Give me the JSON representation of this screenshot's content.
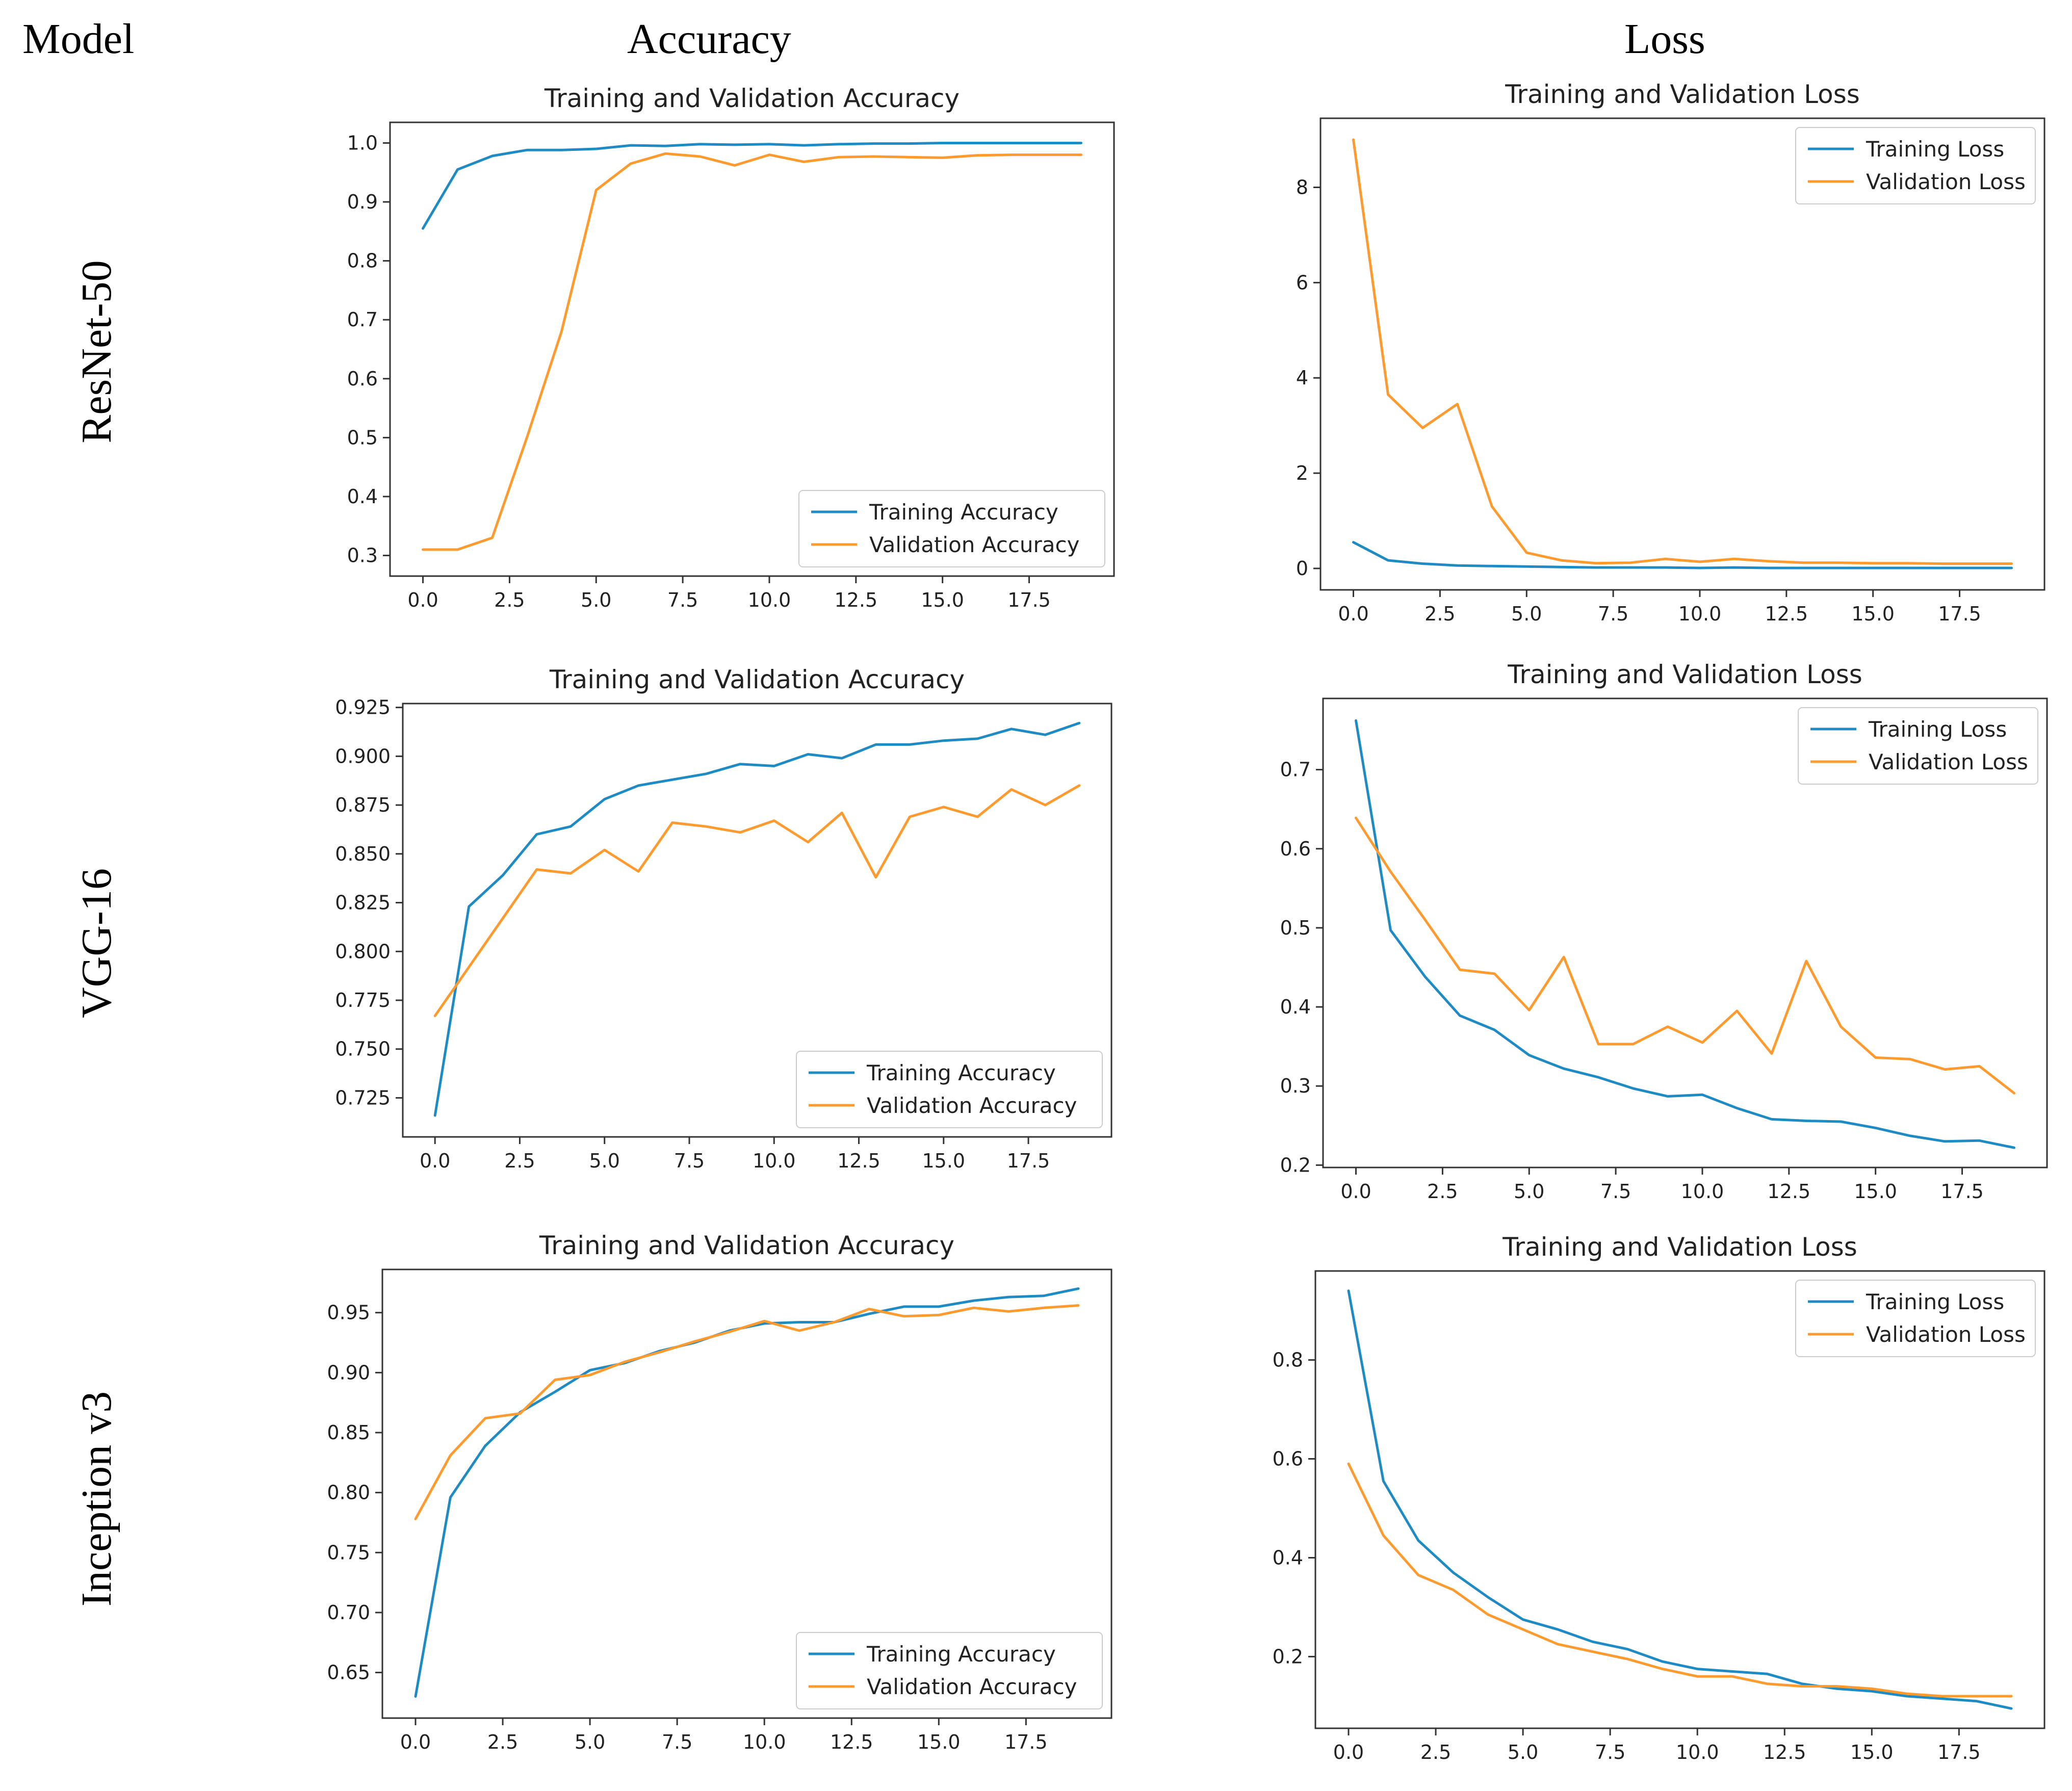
{
  "headers": {
    "model": "Model",
    "accuracy": "Accuracy",
    "loss": "Loss"
  },
  "rows": [
    {
      "label": "ResNet-50"
    },
    {
      "label": "VGG-16"
    },
    {
      "label": "Inception v3"
    }
  ],
  "colors": {
    "training": "#1f8bc4",
    "validation": "#ff9a2e",
    "axis": "#333333"
  },
  "chart_data": [
    {
      "id": "resnet50-accuracy",
      "type": "line",
      "title": "Training and Validation Accuracy",
      "xlabel": "",
      "ylabel": "",
      "x": [
        0,
        1,
        2,
        3,
        4,
        5,
        6,
        7,
        8,
        9,
        10,
        11,
        12,
        13,
        14,
        15,
        16,
        17,
        18,
        19
      ],
      "xlim": [
        -0.95,
        19.95
      ],
      "ylim": [
        0.265,
        1.035
      ],
      "grid": false,
      "xticks": [
        "0.0",
        "2.5",
        "5.0",
        "7.5",
        "10.0",
        "12.5",
        "15.0",
        "17.5"
      ],
      "xtick_values": [
        0,
        2.5,
        5,
        7.5,
        10,
        12.5,
        15,
        17.5
      ],
      "yticks": [
        "0.3",
        "0.4",
        "0.5",
        "0.6",
        "0.7",
        "0.8",
        "0.9",
        "1.0"
      ],
      "ytick_values": [
        0.3,
        0.4,
        0.5,
        0.6,
        0.7,
        0.8,
        0.9,
        1.0
      ],
      "legend_position": "lower-right",
      "series": [
        {
          "name": "Training Accuracy",
          "values": [
            0.855,
            0.955,
            0.978,
            0.988,
            0.988,
            0.99,
            0.996,
            0.995,
            0.998,
            0.997,
            0.998,
            0.996,
            0.998,
            0.999,
            0.999,
            1.0,
            1.0,
            1.0,
            1.0,
            1.0
          ]
        },
        {
          "name": "Validation Accuracy",
          "values": [
            0.31,
            0.31,
            0.33,
            0.5,
            0.68,
            0.92,
            0.965,
            0.982,
            0.977,
            0.962,
            0.98,
            0.968,
            0.976,
            0.977,
            0.976,
            0.975,
            0.979,
            0.98,
            0.98,
            0.98
          ]
        }
      ]
    },
    {
      "id": "resnet50-loss",
      "type": "line",
      "title": "Training and Validation Loss",
      "xlabel": "",
      "ylabel": "",
      "x": [
        0,
        1,
        2,
        3,
        4,
        5,
        6,
        7,
        8,
        9,
        10,
        11,
        12,
        13,
        14,
        15,
        16,
        17,
        18,
        19
      ],
      "xlim": [
        -0.95,
        19.95
      ],
      "ylim": [
        -0.45,
        9.45
      ],
      "grid": false,
      "xticks": [
        "0.0",
        "2.5",
        "5.0",
        "7.5",
        "10.0",
        "12.5",
        "15.0",
        "17.5"
      ],
      "xtick_values": [
        0,
        2.5,
        5,
        7.5,
        10,
        12.5,
        15,
        17.5
      ],
      "yticks": [
        "0",
        "2",
        "4",
        "6",
        "8"
      ],
      "ytick_values": [
        0,
        2,
        4,
        6,
        8
      ],
      "legend_position": "top-right",
      "series": [
        {
          "name": "Training Loss",
          "values": [
            0.55,
            0.17,
            0.1,
            0.06,
            0.05,
            0.04,
            0.03,
            0.02,
            0.02,
            0.02,
            0.01,
            0.02,
            0.01,
            0.01,
            0.01,
            0.01,
            0.01,
            0.01,
            0.01,
            0.01
          ]
        },
        {
          "name": "Validation Loss",
          "values": [
            9.0,
            3.65,
            2.95,
            3.45,
            1.3,
            0.33,
            0.17,
            0.11,
            0.12,
            0.2,
            0.14,
            0.2,
            0.15,
            0.12,
            0.12,
            0.11,
            0.11,
            0.1,
            0.1,
            0.1
          ]
        }
      ]
    },
    {
      "id": "vgg16-accuracy",
      "type": "line",
      "title": "Training and Validation Accuracy",
      "xlabel": "",
      "ylabel": "",
      "x": [
        0,
        1,
        2,
        3,
        4,
        5,
        6,
        7,
        8,
        9,
        10,
        11,
        12,
        13,
        14,
        15,
        16,
        17,
        18,
        19
      ],
      "xlim": [
        -0.95,
        19.95
      ],
      "ylim": [
        0.705,
        0.927
      ],
      "grid": false,
      "xticks": [
        "0.0",
        "2.5",
        "5.0",
        "7.5",
        "10.0",
        "12.5",
        "15.0",
        "17.5"
      ],
      "xtick_values": [
        0,
        2.5,
        5,
        7.5,
        10,
        12.5,
        15,
        17.5
      ],
      "yticks": [
        "0.725",
        "0.750",
        "0.775",
        "0.800",
        "0.825",
        "0.850",
        "0.875",
        "0.900",
        "0.925"
      ],
      "ytick_values": [
        0.725,
        0.75,
        0.775,
        0.8,
        0.825,
        0.85,
        0.875,
        0.9,
        0.925
      ],
      "legend_position": "lower-right",
      "series": [
        {
          "name": "Training Accuracy",
          "values": [
            0.716,
            0.823,
            0.839,
            0.86,
            0.864,
            0.878,
            0.885,
            0.888,
            0.891,
            0.896,
            0.895,
            0.901,
            0.899,
            0.906,
            0.906,
            0.908,
            0.909,
            0.914,
            0.911,
            0.917
          ]
        },
        {
          "name": "Validation Accuracy",
          "values": [
            0.767,
            0.792,
            0.817,
            0.842,
            0.84,
            0.852,
            0.841,
            0.866,
            0.864,
            0.861,
            0.867,
            0.856,
            0.871,
            0.838,
            0.869,
            0.874,
            0.869,
            0.883,
            0.875,
            0.885
          ]
        }
      ]
    },
    {
      "id": "vgg16-loss",
      "type": "line",
      "title": "Training and Validation Loss",
      "xlabel": "",
      "ylabel": "",
      "x": [
        0,
        1,
        2,
        3,
        4,
        5,
        6,
        7,
        8,
        9,
        10,
        11,
        12,
        13,
        14,
        15,
        16,
        17,
        18,
        19
      ],
      "xlim": [
        -0.95,
        19.95
      ],
      "ylim": [
        0.197,
        0.79
      ],
      "grid": false,
      "xticks": [
        "0.0",
        "2.5",
        "5.0",
        "7.5",
        "10.0",
        "12.5",
        "15.0",
        "17.5"
      ],
      "xtick_values": [
        0,
        2.5,
        5,
        7.5,
        10,
        12.5,
        15,
        17.5
      ],
      "yticks": [
        "0.2",
        "0.3",
        "0.4",
        "0.5",
        "0.6",
        "0.7"
      ],
      "ytick_values": [
        0.2,
        0.3,
        0.4,
        0.5,
        0.6,
        0.7
      ],
      "legend_position": "top-right",
      "series": [
        {
          "name": "Training Loss",
          "values": [
            0.762,
            0.497,
            0.438,
            0.389,
            0.371,
            0.339,
            0.322,
            0.311,
            0.297,
            0.287,
            0.289,
            0.272,
            0.258,
            0.256,
            0.255,
            0.247,
            0.237,
            0.23,
            0.231,
            0.222
          ]
        },
        {
          "name": "Validation Loss",
          "values": [
            0.639,
            0.571,
            0.51,
            0.447,
            0.442,
            0.396,
            0.463,
            0.353,
            0.353,
            0.375,
            0.355,
            0.395,
            0.341,
            0.458,
            0.375,
            0.336,
            0.334,
            0.321,
            0.325,
            0.291
          ]
        }
      ]
    },
    {
      "id": "inceptionv3-accuracy",
      "type": "line",
      "title": "Training and Validation Accuracy",
      "xlabel": "",
      "ylabel": "",
      "x": [
        0,
        1,
        2,
        3,
        4,
        5,
        6,
        7,
        8,
        9,
        10,
        11,
        12,
        13,
        14,
        15,
        16,
        17,
        18,
        19
      ],
      "xlim": [
        -0.95,
        19.95
      ],
      "ylim": [
        0.612,
        0.986
      ],
      "grid": false,
      "xticks": [
        "0.0",
        "2.5",
        "5.0",
        "7.5",
        "10.0",
        "12.5",
        "15.0",
        "17.5"
      ],
      "xtick_values": [
        0,
        2.5,
        5,
        7.5,
        10,
        12.5,
        15,
        17.5
      ],
      "yticks": [
        "0.65",
        "0.70",
        "0.75",
        "0.80",
        "0.85",
        "0.90",
        "0.95"
      ],
      "ytick_values": [
        0.65,
        0.7,
        0.75,
        0.8,
        0.85,
        0.9,
        0.95
      ],
      "legend_position": "lower-right",
      "series": [
        {
          "name": "Training Accuracy",
          "values": [
            0.63,
            0.796,
            0.839,
            0.867,
            0.884,
            0.902,
            0.908,
            0.918,
            0.925,
            0.935,
            0.941,
            0.942,
            0.942,
            0.949,
            0.955,
            0.955,
            0.96,
            0.963,
            0.964,
            0.97
          ]
        },
        {
          "name": "Validation Accuracy",
          "values": [
            0.778,
            0.831,
            0.862,
            0.866,
            0.894,
            0.898,
            0.909,
            0.917,
            0.926,
            0.934,
            0.943,
            0.935,
            0.942,
            0.953,
            0.947,
            0.948,
            0.954,
            0.951,
            0.954,
            0.956
          ]
        }
      ]
    },
    {
      "id": "inceptionv3-loss",
      "type": "line",
      "title": "Training and Validation Loss",
      "xlabel": "",
      "ylabel": "",
      "x": [
        0,
        1,
        2,
        3,
        4,
        5,
        6,
        7,
        8,
        9,
        10,
        11,
        12,
        13,
        14,
        15,
        16,
        17,
        18,
        19
      ],
      "xlim": [
        -0.95,
        19.95
      ],
      "ylim": [
        0.055,
        0.98
      ],
      "grid": false,
      "xticks": [
        "0.0",
        "2.5",
        "5.0",
        "7.5",
        "10.0",
        "12.5",
        "15.0",
        "17.5"
      ],
      "xtick_values": [
        0,
        2.5,
        5,
        7.5,
        10,
        12.5,
        15,
        17.5
      ],
      "yticks": [
        "0.2",
        "0.4",
        "0.6",
        "0.8"
      ],
      "ytick_values": [
        0.2,
        0.4,
        0.6,
        0.8
      ],
      "legend_position": "top-right",
      "series": [
        {
          "name": "Training Loss",
          "values": [
            0.94,
            0.555,
            0.435,
            0.37,
            0.32,
            0.275,
            0.255,
            0.23,
            0.215,
            0.19,
            0.175,
            0.17,
            0.165,
            0.145,
            0.135,
            0.13,
            0.12,
            0.115,
            0.11,
            0.095
          ]
        },
        {
          "name": "Validation Loss",
          "values": [
            0.59,
            0.445,
            0.365,
            0.335,
            0.285,
            0.255,
            0.225,
            0.21,
            0.195,
            0.175,
            0.16,
            0.16,
            0.145,
            0.14,
            0.14,
            0.135,
            0.125,
            0.12,
            0.12,
            0.12
          ]
        }
      ]
    }
  ]
}
